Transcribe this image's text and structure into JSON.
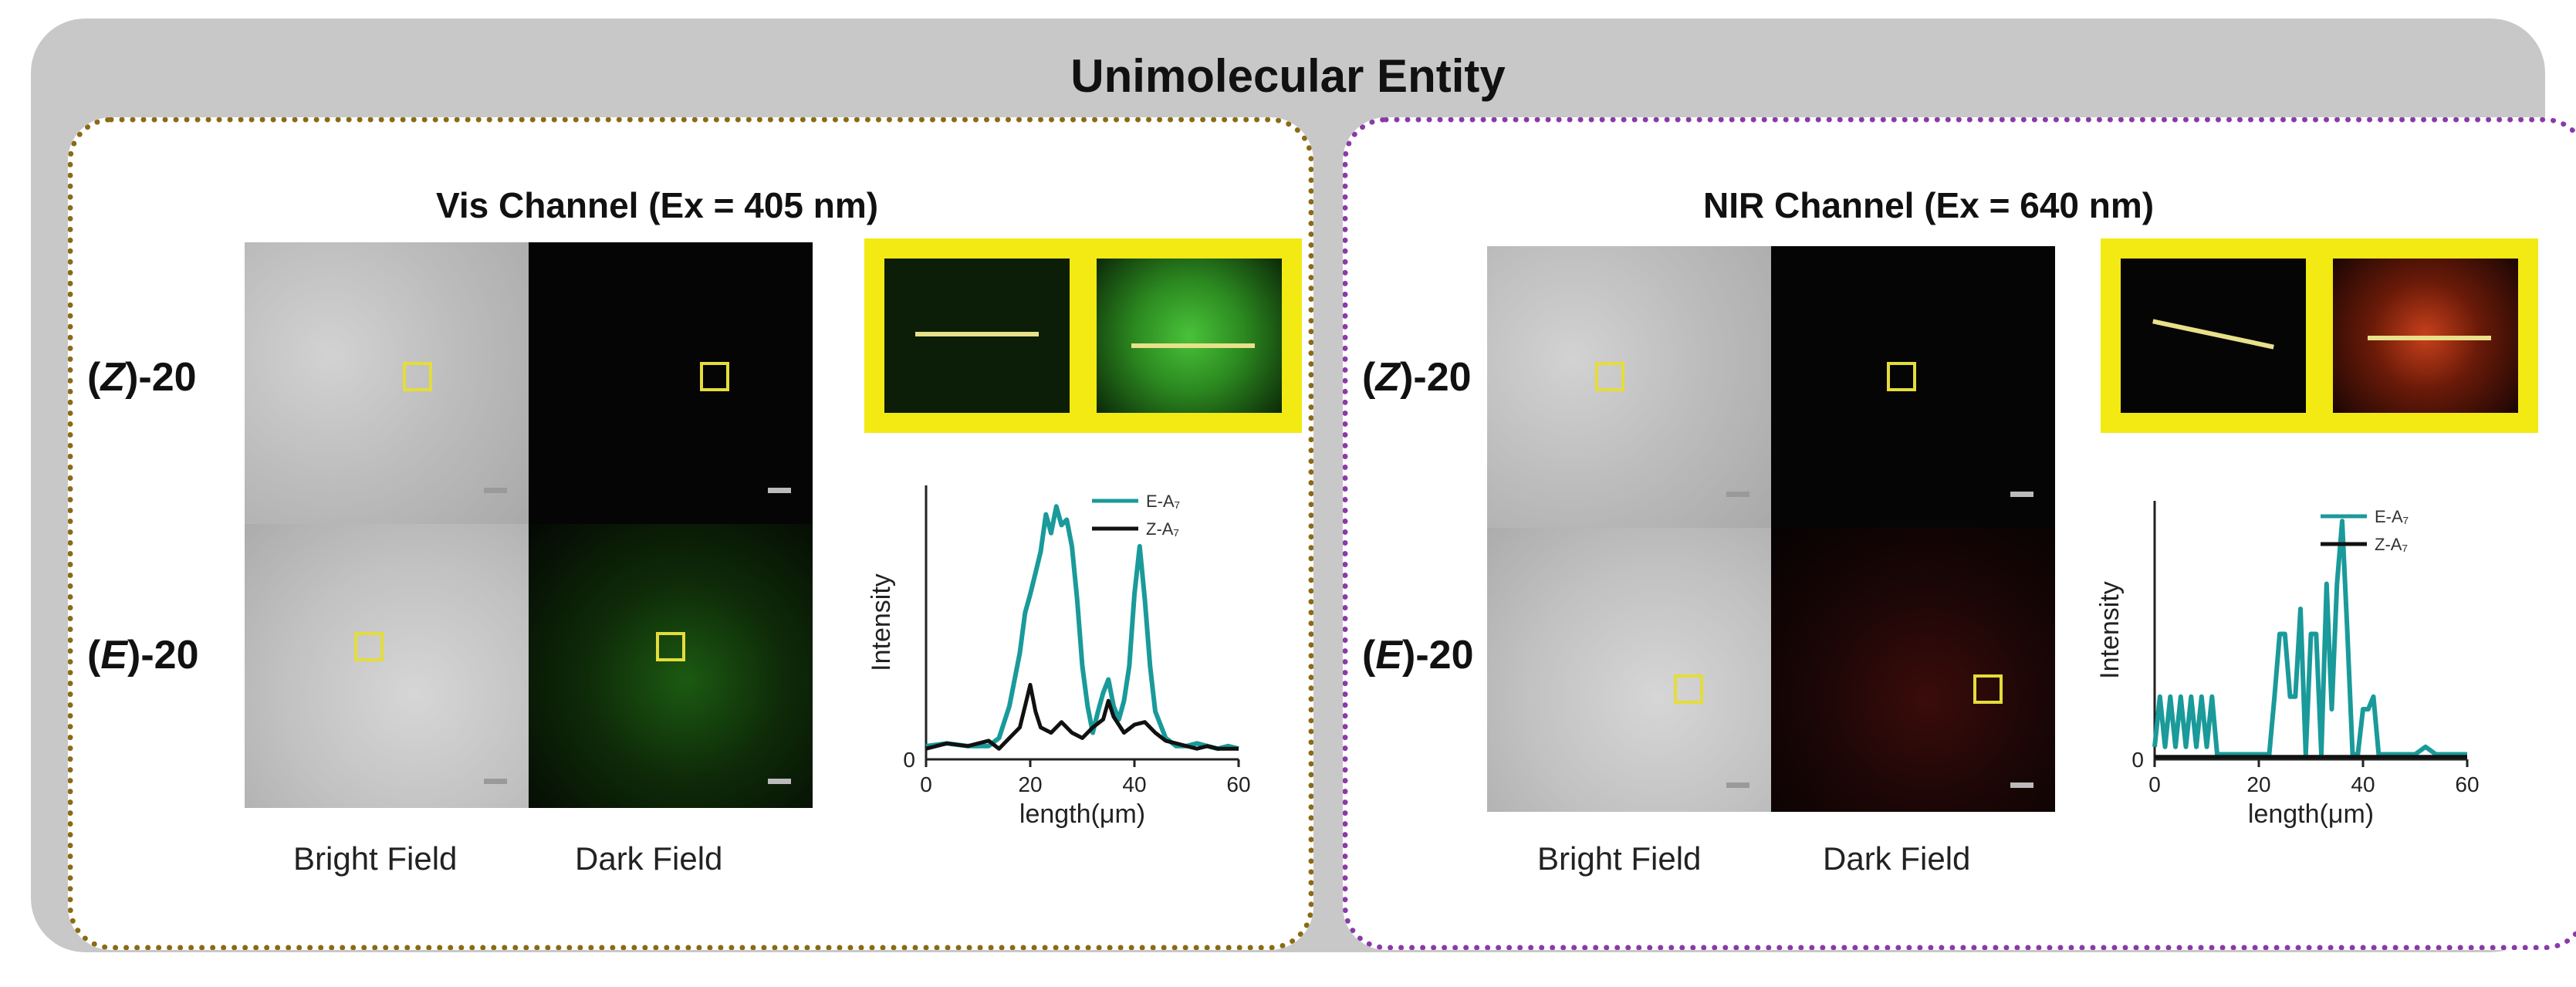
{
  "title": "Unimolecular Entity",
  "panels": {
    "vis": {
      "title": "Vis Channel  (Ex = 405 nm)",
      "row_labels": [
        {
          "paren": "(",
          "italic": "Z",
          "rest": ")-20"
        },
        {
          "paren": "(",
          "italic": "E",
          "rest": ")-20"
        }
      ],
      "field_labels": {
        "bright": "Bright Field",
        "dark": "Dark Field"
      }
    },
    "nir": {
      "title": "NIR Channel  (Ex = 640 nm)",
      "row_labels": [
        {
          "paren": "(",
          "italic": "Z",
          "rest": ")-20"
        },
        {
          "paren": "(",
          "italic": "E",
          "rest": ")-20"
        }
      ],
      "field_labels": {
        "bright": "Bright Field",
        "dark": "Dark Field"
      }
    }
  },
  "colors": {
    "e_series": "#1a9a9a",
    "z_series": "#111111",
    "roi": "#e4dd3a",
    "zoom_frame": "#f2ea12"
  },
  "chart_data": [
    {
      "type": "line",
      "xlabel": "length(μm)",
      "ylabel": "Intensity",
      "xlim": [
        0,
        60
      ],
      "xticks": [
        0,
        20,
        40,
        60
      ],
      "yticks": [
        0
      ],
      "grid": false,
      "legend_placement": "top-right",
      "series": [
        {
          "name": "E-A₇",
          "x": [
            0,
            4,
            8,
            12,
            14,
            16,
            18,
            19,
            20,
            21,
            22,
            23,
            24,
            25,
            26,
            27,
            28,
            29,
            30,
            31,
            32,
            33,
            34,
            35,
            36,
            37,
            38,
            39,
            40,
            41,
            42,
            43,
            44,
            46,
            48,
            50,
            52,
            54,
            56,
            58,
            60
          ],
          "y": [
            0.05,
            0.06,
            0.05,
            0.05,
            0.08,
            0.2,
            0.4,
            0.55,
            0.62,
            0.7,
            0.78,
            0.92,
            0.85,
            0.95,
            0.88,
            0.9,
            0.8,
            0.6,
            0.35,
            0.2,
            0.1,
            0.18,
            0.25,
            0.3,
            0.2,
            0.15,
            0.22,
            0.35,
            0.62,
            0.8,
            0.6,
            0.35,
            0.18,
            0.08,
            0.05,
            0.05,
            0.06,
            0.05,
            0.04,
            0.05,
            0.04
          ]
        },
        {
          "name": "Z-A₇",
          "x": [
            0,
            4,
            8,
            12,
            14,
            16,
            18,
            19,
            20,
            21,
            22,
            24,
            26,
            28,
            30,
            32,
            34,
            35,
            36,
            38,
            40,
            42,
            44,
            46,
            48,
            50,
            52,
            54,
            56,
            58,
            60
          ],
          "y": [
            0.04,
            0.06,
            0.05,
            0.07,
            0.04,
            0.08,
            0.12,
            0.2,
            0.28,
            0.18,
            0.12,
            0.1,
            0.14,
            0.1,
            0.08,
            0.12,
            0.15,
            0.22,
            0.16,
            0.1,
            0.13,
            0.14,
            0.1,
            0.07,
            0.06,
            0.05,
            0.04,
            0.05,
            0.04,
            0.04,
            0.04
          ]
        }
      ]
    },
    {
      "type": "line",
      "xlabel": "length(μm)",
      "ylabel": "Intensity",
      "xlim": [
        0,
        60
      ],
      "xticks": [
        0,
        20,
        40,
        60
      ],
      "yticks": [
        0
      ],
      "grid": false,
      "legend_placement": "top-right",
      "series": [
        {
          "name": "E-A₇",
          "x": [
            0,
            1,
            2,
            3,
            4,
            5,
            6,
            7,
            8,
            9,
            10,
            11,
            12,
            14,
            16,
            18,
            20,
            22,
            23,
            24,
            25,
            26,
            27,
            28,
            29,
            30,
            31,
            32,
            33,
            34,
            35,
            36,
            37,
            38,
            39,
            40,
            41,
            42,
            43,
            44,
            46,
            48,
            50,
            52,
            54,
            56,
            58,
            60
          ],
          "y": [
            0.05,
            0.25,
            0.05,
            0.25,
            0.05,
            0.25,
            0.05,
            0.25,
            0.05,
            0.25,
            0.05,
            0.25,
            0.02,
            0.02,
            0.02,
            0.02,
            0.02,
            0.02,
            0.25,
            0.5,
            0.5,
            0.25,
            0.25,
            0.6,
            0.02,
            0.5,
            0.5,
            0.02,
            0.7,
            0.2,
            0.7,
            0.95,
            0.5,
            0.02,
            0.02,
            0.2,
            0.2,
            0.25,
            0.02,
            0.02,
            0.02,
            0.02,
            0.02,
            0.05,
            0.02,
            0.02,
            0.02,
            0.02
          ]
        },
        {
          "name": "Z-A₇",
          "x": [
            0,
            10,
            20,
            30,
            40,
            50,
            60
          ],
          "y": [
            0.01,
            0.01,
            0.01,
            0.01,
            0.01,
            0.01,
            0.01
          ]
        }
      ]
    }
  ]
}
